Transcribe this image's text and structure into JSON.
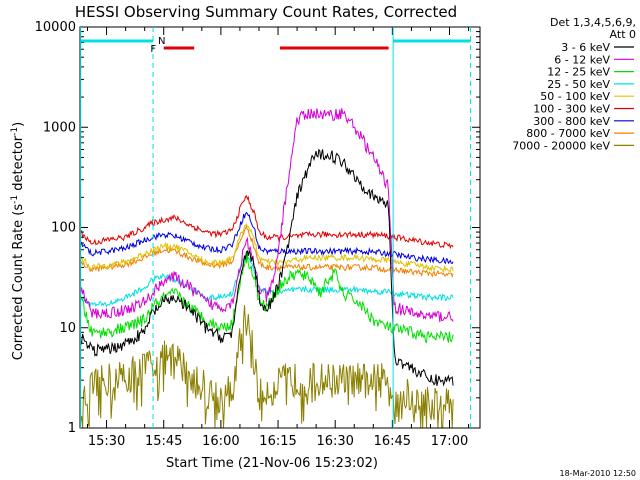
{
  "chart_data": {
    "type": "line",
    "title": "HESSI Observing Summary Count Rates, Corrected",
    "xlabel": "Start Time (21-Nov-06 15:23:02)",
    "ylabel": "Corrected Count Rate (s",
    "ylabel_sup": "-1",
    "ylabel_tail": " detector",
    "ylabel_sup2": "-1",
    "ylabel_end": ")",
    "footer": "18-Mar-2010 12:50",
    "y_scale": "log",
    "ylim": [
      1,
      10000
    ],
    "xlim": [
      23.03,
      128
    ],
    "x_ticks": [
      {
        "v": 30,
        "label": "15:30"
      },
      {
        "v": 45,
        "label": "15:45"
      },
      {
        "v": 60,
        "label": "16:00"
      },
      {
        "v": 75,
        "label": "16:15"
      },
      {
        "v": 90,
        "label": "16:30"
      },
      {
        "v": 105,
        "label": "16:45"
      },
      {
        "v": 120,
        "label": "17:00"
      }
    ],
    "y_ticks": [
      {
        "v": 1,
        "label": "1"
      },
      {
        "v": 10,
        "label": "10"
      },
      {
        "v": 100,
        "label": "100"
      },
      {
        "v": 1000,
        "label": "1000"
      },
      {
        "v": 10000,
        "label": "10000"
      }
    ],
    "legend_header": [
      "Det 1,3,4,5,6,9,",
      "Att 0"
    ],
    "series": [
      {
        "name": "3 - 6 keV",
        "color": "#000000",
        "points": [
          [
            23.2,
            8
          ],
          [
            26,
            6
          ],
          [
            30,
            6
          ],
          [
            35,
            7
          ],
          [
            40,
            9
          ],
          [
            42,
            14
          ],
          [
            45,
            18
          ],
          [
            48,
            20
          ],
          [
            52,
            15
          ],
          [
            56,
            10
          ],
          [
            60,
            8
          ],
          [
            63,
            9
          ],
          [
            66,
            50
          ],
          [
            67,
            60
          ],
          [
            69,
            40
          ],
          [
            70,
            20
          ],
          [
            72,
            15
          ],
          [
            74,
            20
          ],
          [
            77,
            50
          ],
          [
            80,
            200
          ],
          [
            84,
            500
          ],
          [
            88,
            550
          ],
          [
            92,
            450
          ],
          [
            96,
            300
          ],
          [
            100,
            200
          ],
          [
            104,
            170
          ],
          [
            105.5,
            5
          ],
          [
            110,
            4
          ],
          [
            115,
            3
          ],
          [
            121,
            3
          ]
        ]
      },
      {
        "name": "6 - 12 keV",
        "color": "#d400d4",
        "points": [
          [
            23.2,
            25
          ],
          [
            26,
            14
          ],
          [
            30,
            14
          ],
          [
            35,
            15
          ],
          [
            40,
            18
          ],
          [
            42,
            22
          ],
          [
            45,
            30
          ],
          [
            48,
            32
          ],
          [
            52,
            25
          ],
          [
            56,
            18
          ],
          [
            60,
            16
          ],
          [
            63,
            18
          ],
          [
            66,
            60
          ],
          [
            67,
            70
          ],
          [
            69,
            40
          ],
          [
            70,
            25
          ],
          [
            72,
            20
          ],
          [
            74,
            30
          ],
          [
            77,
            200
          ],
          [
            80,
            1200
          ],
          [
            84,
            1400
          ],
          [
            88,
            1300
          ],
          [
            92,
            1400
          ],
          [
            96,
            900
          ],
          [
            100,
            500
          ],
          [
            104,
            250
          ],
          [
            105.5,
            16
          ],
          [
            110,
            14
          ],
          [
            115,
            13
          ],
          [
            121,
            13
          ]
        ]
      },
      {
        "name": "12 - 25 keV",
        "color": "#00e000",
        "points": [
          [
            23.2,
            20
          ],
          [
            26,
            9
          ],
          [
            30,
            9
          ],
          [
            35,
            10
          ],
          [
            40,
            12
          ],
          [
            42,
            16
          ],
          [
            45,
            20
          ],
          [
            48,
            22
          ],
          [
            52,
            16
          ],
          [
            56,
            12
          ],
          [
            60,
            10
          ],
          [
            63,
            11
          ],
          [
            66,
            45
          ],
          [
            67,
            50
          ],
          [
            69,
            30
          ],
          [
            70,
            18
          ],
          [
            72,
            16
          ],
          [
            74,
            22
          ],
          [
            77,
            30
          ],
          [
            80,
            35
          ],
          [
            84,
            30
          ],
          [
            86,
            22
          ],
          [
            88,
            30
          ],
          [
            90,
            35
          ],
          [
            92,
            22
          ],
          [
            96,
            18
          ],
          [
            100,
            12
          ],
          [
            104,
            10
          ],
          [
            110,
            9
          ],
          [
            115,
            8
          ],
          [
            121,
            8
          ]
        ]
      },
      {
        "name": "25 - 50 keV",
        "color": "#00e0e0",
        "points": [
          [
            23.2,
            20
          ],
          [
            26,
            17
          ],
          [
            30,
            17
          ],
          [
            35,
            20
          ],
          [
            40,
            25
          ],
          [
            42,
            30
          ],
          [
            45,
            33
          ],
          [
            48,
            30
          ],
          [
            52,
            25
          ],
          [
            56,
            20
          ],
          [
            60,
            20
          ],
          [
            63,
            22
          ],
          [
            66,
            50
          ],
          [
            67,
            55
          ],
          [
            69,
            35
          ],
          [
            70,
            25
          ],
          [
            72,
            23
          ],
          [
            74,
            22
          ],
          [
            77,
            23
          ],
          [
            80,
            24
          ],
          [
            84,
            24
          ],
          [
            88,
            24
          ],
          [
            92,
            24
          ],
          [
            96,
            24
          ],
          [
            100,
            23
          ],
          [
            104,
            23
          ],
          [
            105.5,
            22
          ],
          [
            110,
            21
          ],
          [
            115,
            20
          ],
          [
            121,
            20
          ]
        ]
      },
      {
        "name": "50 - 100 keV",
        "color": "#e0c000",
        "points": [
          [
            23.2,
            50
          ],
          [
            26,
            40
          ],
          [
            30,
            42
          ],
          [
            35,
            45
          ],
          [
            40,
            55
          ],
          [
            42,
            60
          ],
          [
            45,
            65
          ],
          [
            48,
            65
          ],
          [
            52,
            55
          ],
          [
            56,
            45
          ],
          [
            60,
            45
          ],
          [
            63,
            50
          ],
          [
            66,
            100
          ],
          [
            67,
            110
          ],
          [
            69,
            70
          ],
          [
            70,
            50
          ],
          [
            72,
            45
          ],
          [
            74,
            45
          ],
          [
            77,
            45
          ],
          [
            80,
            48
          ],
          [
            84,
            50
          ],
          [
            88,
            50
          ],
          [
            92,
            50
          ],
          [
            96,
            50
          ],
          [
            100,
            48
          ],
          [
            104,
            47
          ],
          [
            105.5,
            45
          ],
          [
            110,
            43
          ],
          [
            115,
            40
          ],
          [
            121,
            38
          ]
        ]
      },
      {
        "name": "100 - 300 keV",
        "color": "#e00000",
        "points": [
          [
            23.2,
            90
          ],
          [
            26,
            70
          ],
          [
            30,
            75
          ],
          [
            35,
            80
          ],
          [
            40,
            100
          ],
          [
            42,
            110
          ],
          [
            45,
            120
          ],
          [
            48,
            125
          ],
          [
            52,
            105
          ],
          [
            56,
            90
          ],
          [
            60,
            85
          ],
          [
            63,
            95
          ],
          [
            66,
            190
          ],
          [
            67,
            200
          ],
          [
            69,
            130
          ],
          [
            70,
            90
          ],
          [
            72,
            80
          ],
          [
            74,
            80
          ],
          [
            77,
            80
          ],
          [
            80,
            82
          ],
          [
            84,
            85
          ],
          [
            88,
            85
          ],
          [
            92,
            85
          ],
          [
            96,
            85
          ],
          [
            100,
            85
          ],
          [
            104,
            82
          ],
          [
            105.5,
            80
          ],
          [
            110,
            75
          ],
          [
            115,
            70
          ],
          [
            121,
            65
          ]
        ]
      },
      {
        "name": "300 - 800 keV",
        "color": "#0000e0",
        "points": [
          [
            23.2,
            70
          ],
          [
            26,
            55
          ],
          [
            30,
            58
          ],
          [
            35,
            62
          ],
          [
            40,
            75
          ],
          [
            42,
            80
          ],
          [
            45,
            85
          ],
          [
            48,
            82
          ],
          [
            52,
            72
          ],
          [
            56,
            62
          ],
          [
            60,
            60
          ],
          [
            63,
            68
          ],
          [
            66,
            130
          ],
          [
            67,
            140
          ],
          [
            69,
            90
          ],
          [
            70,
            62
          ],
          [
            72,
            58
          ],
          [
            74,
            58
          ],
          [
            77,
            58
          ],
          [
            80,
            58
          ],
          [
            84,
            58
          ],
          [
            88,
            58
          ],
          [
            92,
            58
          ],
          [
            96,
            58
          ],
          [
            100,
            57
          ],
          [
            104,
            55
          ],
          [
            105.5,
            54
          ],
          [
            110,
            50
          ],
          [
            115,
            48
          ],
          [
            121,
            45
          ]
        ]
      },
      {
        "name": "800 - 7000 keV",
        "color": "#f08000",
        "points": [
          [
            23.2,
            45
          ],
          [
            26,
            38
          ],
          [
            30,
            40
          ],
          [
            35,
            43
          ],
          [
            40,
            50
          ],
          [
            42,
            55
          ],
          [
            45,
            60
          ],
          [
            48,
            58
          ],
          [
            52,
            50
          ],
          [
            56,
            43
          ],
          [
            60,
            42
          ],
          [
            63,
            46
          ],
          [
            66,
            90
          ],
          [
            67,
            100
          ],
          [
            69,
            60
          ],
          [
            70,
            44
          ],
          [
            72,
            40
          ],
          [
            74,
            40
          ],
          [
            77,
            40
          ],
          [
            80,
            40
          ],
          [
            84,
            40
          ],
          [
            88,
            40
          ],
          [
            92,
            40
          ],
          [
            96,
            40
          ],
          [
            100,
            40
          ],
          [
            104,
            38
          ],
          [
            105.5,
            38
          ],
          [
            110,
            36
          ],
          [
            115,
            35
          ],
          [
            121,
            33
          ]
        ]
      },
      {
        "name": "7000 - 20000 keV",
        "color": "#8c8000",
        "points": [
          [
            23.2,
            1.6
          ],
          [
            26,
            2.5
          ],
          [
            30,
            3
          ],
          [
            35,
            3.5
          ],
          [
            40,
            4
          ],
          [
            42,
            4.5
          ],
          [
            45,
            5
          ],
          [
            48,
            5
          ],
          [
            52,
            3.5
          ],
          [
            56,
            2.5
          ],
          [
            60,
            2
          ],
          [
            63,
            2.5
          ],
          [
            66,
            12
          ],
          [
            67,
            14
          ],
          [
            69,
            4
          ],
          [
            70,
            2
          ],
          [
            72,
            2.5
          ],
          [
            74,
            2.5
          ],
          [
            77,
            3
          ],
          [
            80,
            3
          ],
          [
            84,
            3
          ],
          [
            88,
            3
          ],
          [
            92,
            3
          ],
          [
            96,
            3
          ],
          [
            100,
            3
          ],
          [
            104,
            3
          ],
          [
            105.5,
            2.5
          ],
          [
            110,
            2
          ],
          [
            115,
            1.8
          ],
          [
            121,
            1.8
          ]
        ]
      }
    ],
    "annotations": [
      {
        "label": "N",
        "color": "#00e0e0"
      },
      {
        "label": "F",
        "color": "#e00000"
      }
    ]
  }
}
